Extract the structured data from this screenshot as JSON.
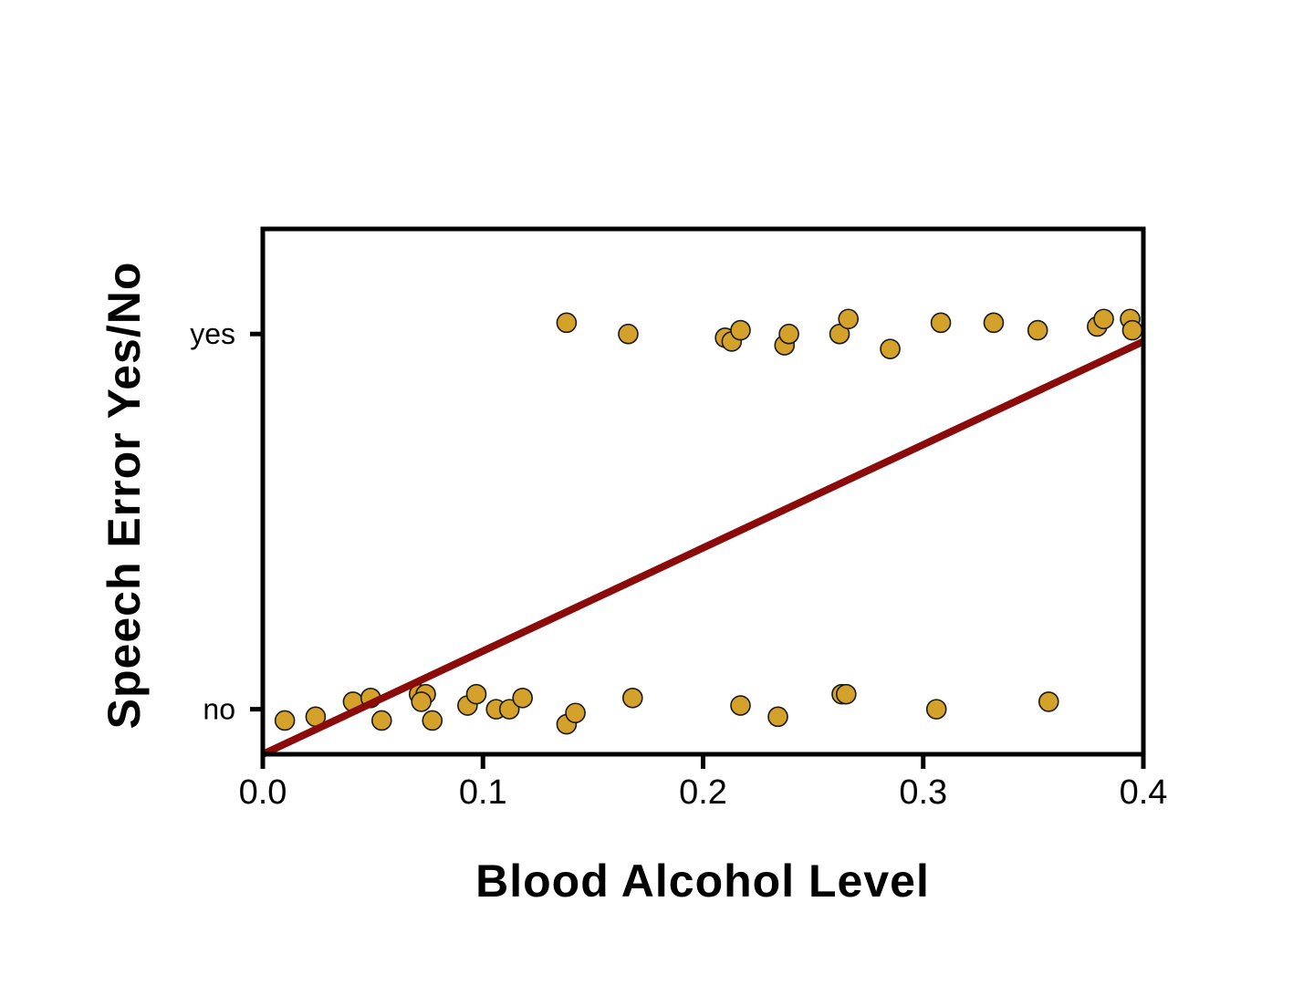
{
  "chart_data": {
    "type": "scatter",
    "title": "",
    "xlabel": "Blood Alcohol Level",
    "ylabel": "Speech Error Yes/No",
    "xlim": [
      0.0,
      0.4
    ],
    "ylim": [
      -0.12,
      1.28
    ],
    "x_ticks": [
      "0.0",
      "0.1",
      "0.2",
      "0.3",
      "0.4"
    ],
    "y_ticks": [
      {
        "value": 0,
        "label": "no"
      },
      {
        "value": 1,
        "label": "yes"
      }
    ],
    "grid": false,
    "legend": "none",
    "point_color": "#d4a12a",
    "line_color": "#8b0a0a",
    "series": [
      {
        "kind": "points",
        "points": [
          {
            "x": 0.01,
            "y": -0.03
          },
          {
            "x": 0.024,
            "y": -0.02
          },
          {
            "x": 0.041,
            "y": 0.02
          },
          {
            "x": 0.049,
            "y": 0.03
          },
          {
            "x": 0.054,
            "y": -0.03
          },
          {
            "x": 0.071,
            "y": 0.04
          },
          {
            "x": 0.074,
            "y": 0.04
          },
          {
            "x": 0.072,
            "y": 0.02
          },
          {
            "x": 0.077,
            "y": -0.03
          },
          {
            "x": 0.093,
            "y": 0.01
          },
          {
            "x": 0.097,
            "y": 0.04
          },
          {
            "x": 0.106,
            "y": 0.0
          },
          {
            "x": 0.112,
            "y": 0.0
          },
          {
            "x": 0.118,
            "y": 0.03
          },
          {
            "x": 0.138,
            "y": -0.04
          },
          {
            "x": 0.142,
            "y": -0.01
          },
          {
            "x": 0.168,
            "y": 0.03
          },
          {
            "x": 0.217,
            "y": 0.01
          },
          {
            "x": 0.234,
            "y": -0.02
          },
          {
            "x": 0.263,
            "y": 0.04
          },
          {
            "x": 0.265,
            "y": 0.04
          },
          {
            "x": 0.306,
            "y": 0.0
          },
          {
            "x": 0.357,
            "y": 0.02
          },
          {
            "x": 0.138,
            "y": 1.03
          },
          {
            "x": 0.166,
            "y": 1.0
          },
          {
            "x": 0.21,
            "y": 0.99
          },
          {
            "x": 0.213,
            "y": 0.98
          },
          {
            "x": 0.217,
            "y": 1.01
          },
          {
            "x": 0.237,
            "y": 0.97
          },
          {
            "x": 0.239,
            "y": 1.0
          },
          {
            "x": 0.262,
            "y": 1.0
          },
          {
            "x": 0.266,
            "y": 1.04
          },
          {
            "x": 0.285,
            "y": 0.96
          },
          {
            "x": 0.308,
            "y": 1.03
          },
          {
            "x": 0.332,
            "y": 1.03
          },
          {
            "x": 0.352,
            "y": 1.01
          },
          {
            "x": 0.379,
            "y": 1.02
          },
          {
            "x": 0.382,
            "y": 1.04
          },
          {
            "x": 0.394,
            "y": 1.04
          },
          {
            "x": 0.395,
            "y": 1.01
          }
        ]
      },
      {
        "kind": "line",
        "points": [
          {
            "x": 0.0,
            "y": -0.12
          },
          {
            "x": 0.4,
            "y": 0.98
          }
        ]
      }
    ]
  }
}
